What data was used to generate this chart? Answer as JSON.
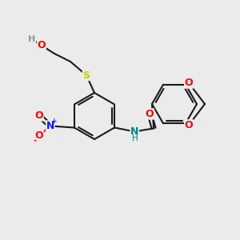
{
  "bg_color": "#ebebeb",
  "bond_color": "#1a1a1a",
  "bond_width": 1.5,
  "atom_colors": {
    "O": "#ff0000",
    "N_no2": "#1414ff",
    "N_nh": "#008080",
    "S": "#cccc00",
    "H": "#7f9f9f"
  },
  "font_size": 8.5,
  "fig_width": 3.0,
  "fig_height": 3.0,
  "dpi": 100
}
